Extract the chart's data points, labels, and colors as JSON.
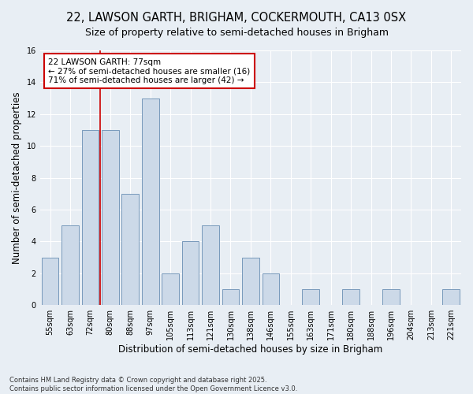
{
  "title_line1": "22, LAWSON GARTH, BRIGHAM, COCKERMOUTH, CA13 0SX",
  "title_line2": "Size of property relative to semi-detached houses in Brigham",
  "xlabel": "Distribution of semi-detached houses by size in Brigham",
  "ylabel": "Number of semi-detached properties",
  "categories": [
    "55sqm",
    "63sqm",
    "72sqm",
    "80sqm",
    "88sqm",
    "97sqm",
    "105sqm",
    "113sqm",
    "121sqm",
    "130sqm",
    "138sqm",
    "146sqm",
    "155sqm",
    "163sqm",
    "171sqm",
    "180sqm",
    "188sqm",
    "196sqm",
    "204sqm",
    "213sqm",
    "221sqm"
  ],
  "values": [
    3,
    5,
    11,
    11,
    7,
    13,
    2,
    4,
    5,
    1,
    3,
    2,
    0,
    1,
    0,
    1,
    0,
    1,
    0,
    0,
    1
  ],
  "bar_color": "#ccd9e8",
  "bar_edge_color": "#7799bb",
  "red_line_x": 3.0,
  "property_label": "22 LAWSON GARTH: 77sqm",
  "smaller_text": "← 27% of semi-detached houses are smaller (16)",
  "larger_text": "71% of semi-detached houses are larger (42) →",
  "annotation_box_color": "#ffffff",
  "annotation_box_edge": "#cc0000",
  "ylim": [
    0,
    16
  ],
  "yticks": [
    0,
    2,
    4,
    6,
    8,
    10,
    12,
    14,
    16
  ],
  "background_color": "#e8eef4",
  "grid_color": "#ffffff",
  "footer": "Contains HM Land Registry data © Crown copyright and database right 2025.\nContains public sector information licensed under the Open Government Licence v3.0.",
  "title_fontsize": 10.5,
  "subtitle_fontsize": 9,
  "axis_label_fontsize": 8.5,
  "tick_fontsize": 7,
  "annotation_fontsize": 7.5,
  "footer_fontsize": 6
}
